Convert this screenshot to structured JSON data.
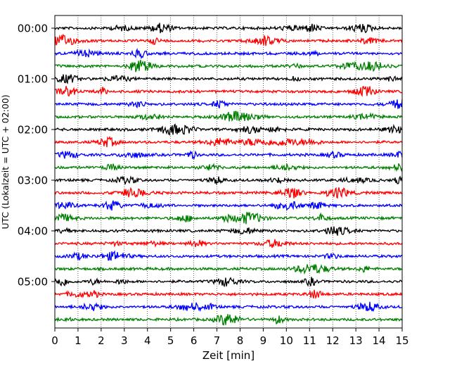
{
  "chart_data": {
    "type": "line",
    "title": "",
    "xlabel": "Zeit  [min]",
    "ylabel": "UTC (Lokalzeit = UTC + 02:00)",
    "xlim": [
      0,
      15
    ],
    "x_ticks": [
      "0",
      "1",
      "2",
      "3",
      "4",
      "5",
      "6",
      "7",
      "8",
      "9",
      "10",
      "11",
      "12",
      "13",
      "14",
      "15"
    ],
    "y_tick_labels": [
      "00:00",
      "01:00",
      "02:00",
      "03:00",
      "04:00",
      "05:00"
    ],
    "trace_interval_min": 15,
    "trace_count": 24,
    "trace_colors": [
      "#000000",
      "#ff0000",
      "#0000ff",
      "#008000"
    ],
    "grid": "vertical dotted at each minute",
    "legend": "none",
    "series": [
      {
        "start": "00:00",
        "color": "#000000"
      },
      {
        "start": "00:15",
        "color": "#ff0000"
      },
      {
        "start": "00:30",
        "color": "#0000ff"
      },
      {
        "start": "00:45",
        "color": "#008000"
      },
      {
        "start": "01:00",
        "color": "#000000"
      },
      {
        "start": "01:15",
        "color": "#ff0000"
      },
      {
        "start": "01:30",
        "color": "#0000ff"
      },
      {
        "start": "01:45",
        "color": "#008000"
      },
      {
        "start": "02:00",
        "color": "#000000"
      },
      {
        "start": "02:15",
        "color": "#ff0000"
      },
      {
        "start": "02:30",
        "color": "#0000ff"
      },
      {
        "start": "02:45",
        "color": "#008000"
      },
      {
        "start": "03:00",
        "color": "#000000"
      },
      {
        "start": "03:15",
        "color": "#ff0000"
      },
      {
        "start": "03:30",
        "color": "#0000ff"
      },
      {
        "start": "03:45",
        "color": "#008000"
      },
      {
        "start": "04:00",
        "color": "#000000"
      },
      {
        "start": "04:15",
        "color": "#ff0000"
      },
      {
        "start": "04:30",
        "color": "#0000ff"
      },
      {
        "start": "04:45",
        "color": "#008000"
      },
      {
        "start": "05:00",
        "color": "#000000"
      },
      {
        "start": "05:15",
        "color": "#ff0000"
      },
      {
        "start": "05:30",
        "color": "#0000ff"
      },
      {
        "start": "05:45",
        "color": "#008000"
      }
    ]
  }
}
